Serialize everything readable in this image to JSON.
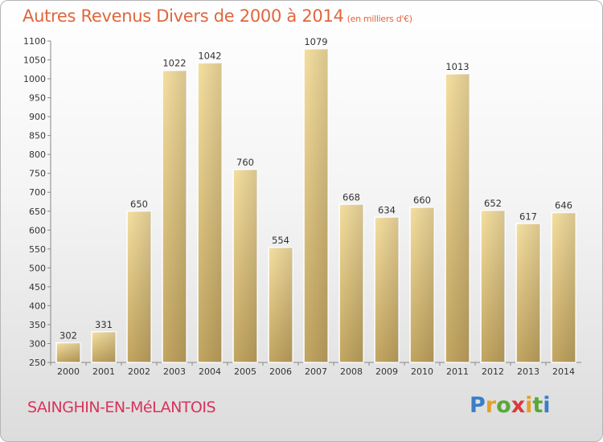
{
  "header": {
    "title": "Autres Revenus Divers de 2000 à 2014",
    "unit": "(en milliers d'€)"
  },
  "footer": {
    "city": "SAINGHIN-EN-MéLANTOIS",
    "logo": [
      "P",
      "r",
      "o",
      "x",
      "i",
      "t",
      "i"
    ]
  },
  "chart_data": {
    "type": "bar",
    "title": "Autres Revenus Divers de 2000 à 2014",
    "subtitle": "(en milliers d'€)",
    "xlabel": "",
    "ylabel": "",
    "categories": [
      "2000",
      "2001",
      "2002",
      "2003",
      "2004",
      "2005",
      "2006",
      "2007",
      "2008",
      "2009",
      "2010",
      "2011",
      "2012",
      "2013",
      "2014"
    ],
    "values": [
      302,
      331,
      650,
      1022,
      1042,
      760,
      554,
      1079,
      668,
      634,
      660,
      1013,
      652,
      617,
      646
    ],
    "ylim": [
      250,
      1100
    ],
    "yticks": [
      250,
      300,
      350,
      400,
      450,
      500,
      550,
      600,
      650,
      700,
      750,
      800,
      850,
      900,
      950,
      1000,
      1050,
      1100
    ],
    "grid": false,
    "bar_color": "#e8cf8a"
  }
}
